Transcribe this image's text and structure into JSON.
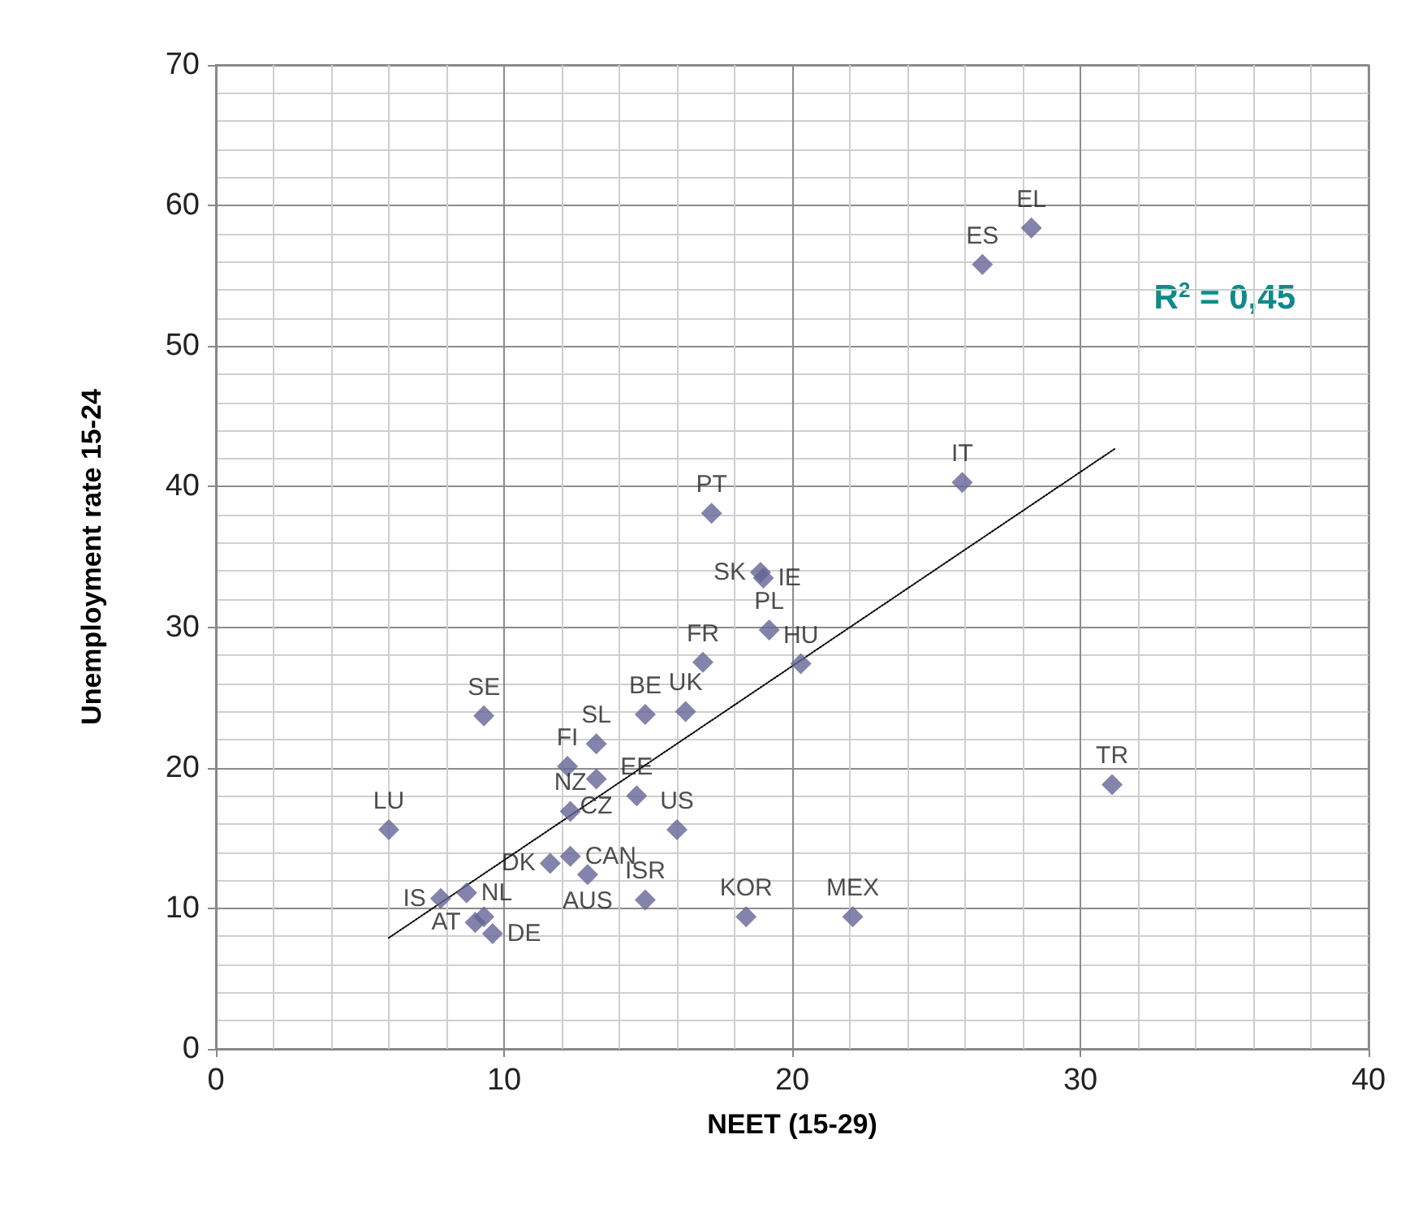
{
  "chart_data": {
    "type": "scatter",
    "xlabel": "NEET (15-29)",
    "ylabel": "Unemployment rate 15-24",
    "xlim": [
      0,
      40
    ],
    "xticks": [
      0,
      10,
      20,
      30,
      40
    ],
    "ylim": [
      0,
      70
    ],
    "yticks": [
      0,
      10,
      20,
      30,
      40,
      50,
      60,
      70
    ],
    "grid": true,
    "marker": "diamond",
    "series": [
      {
        "color": "#646496",
        "x": [
          6.0,
          28.3,
          26.6,
          25.9,
          31.1,
          22.1,
          18.4,
          17.2,
          18.9,
          19.0,
          19.2,
          20.3,
          16.9,
          16.3,
          14.9,
          9.3,
          13.2,
          12.2,
          13.2,
          14.6,
          16.0,
          12.3,
          14.9,
          12.9,
          12.3,
          11.6,
          7.8,
          8.7,
          9.0,
          9.3,
          9.6
        ],
        "values": [
          15.6,
          58.4,
          55.8,
          40.3,
          18.8,
          9.4,
          9.4,
          38.1,
          33.9,
          33.5,
          29.8,
          27.4,
          27.5,
          24.0,
          23.8,
          23.7,
          21.7,
          20.1,
          19.2,
          18.0,
          15.6,
          16.9,
          10.6,
          12.4,
          13.7,
          13.2,
          10.7,
          11.1,
          9.0,
          9.4,
          8.2
        ]
      },
      {
        "type": "line",
        "color": "#000000",
        "line_style": "dotted",
        "marker": "none",
        "x": [
          6.0,
          31.2
        ],
        "values": [
          7.9,
          42.7
        ]
      }
    ],
    "annotations": [
      {
        "text": "LU",
        "x": 6.0,
        "y": 15.6
      },
      {
        "text": "EL",
        "x": 28.3,
        "y": 58.4
      },
      {
        "text": "ES",
        "x": 26.6,
        "y": 55.8
      },
      {
        "text": "IT",
        "x": 25.9,
        "y": 40.3
      },
      {
        "text": "TR",
        "x": 31.1,
        "y": 18.8
      },
      {
        "text": "MEX",
        "x": 22.1,
        "y": 9.4
      },
      {
        "text": "KOR",
        "x": 18.4,
        "y": 9.4
      },
      {
        "text": "PT",
        "x": 17.2,
        "y": 38.1
      },
      {
        "text": "SK",
        "x": 18.9,
        "y": 33.9
      },
      {
        "text": "IE",
        "x": 19.0,
        "y": 33.5
      },
      {
        "text": "PL",
        "x": 19.2,
        "y": 29.8
      },
      {
        "text": "HU",
        "x": 20.3,
        "y": 27.4
      },
      {
        "text": "FR",
        "x": 16.9,
        "y": 27.5
      },
      {
        "text": "UK",
        "x": 16.3,
        "y": 24.0
      },
      {
        "text": "BE",
        "x": 14.9,
        "y": 23.8
      },
      {
        "text": "SE",
        "x": 9.3,
        "y": 23.7
      },
      {
        "text": "SL",
        "x": 13.2,
        "y": 21.7
      },
      {
        "text": "FI",
        "x": 12.2,
        "y": 20.1
      },
      {
        "text": "CZ",
        "x": 13.2,
        "y": 19.2
      },
      {
        "text": "EE",
        "x": 14.6,
        "y": 18.0
      },
      {
        "text": "US",
        "x": 16.0,
        "y": 15.6
      },
      {
        "text": "NZ",
        "x": 12.3,
        "y": 16.9
      },
      {
        "text": "ISR",
        "x": 14.9,
        "y": 10.6
      },
      {
        "text": "AUS",
        "x": 12.9,
        "y": 12.4
      },
      {
        "text": "CAN",
        "x": 12.3,
        "y": 13.7
      },
      {
        "text": "DK",
        "x": 11.6,
        "y": 13.2
      },
      {
        "text": "IS",
        "x": 7.8,
        "y": 10.7
      },
      {
        "text": "NL",
        "x": 8.7,
        "y": 11.1
      },
      {
        "text": "AT",
        "x": 9.0,
        "y": 9.0
      },
      {
        "text": "DE",
        "x": 9.6,
        "y": 8.2
      },
      "R$^{2}$ = 0,45"
    ]
  }
}
